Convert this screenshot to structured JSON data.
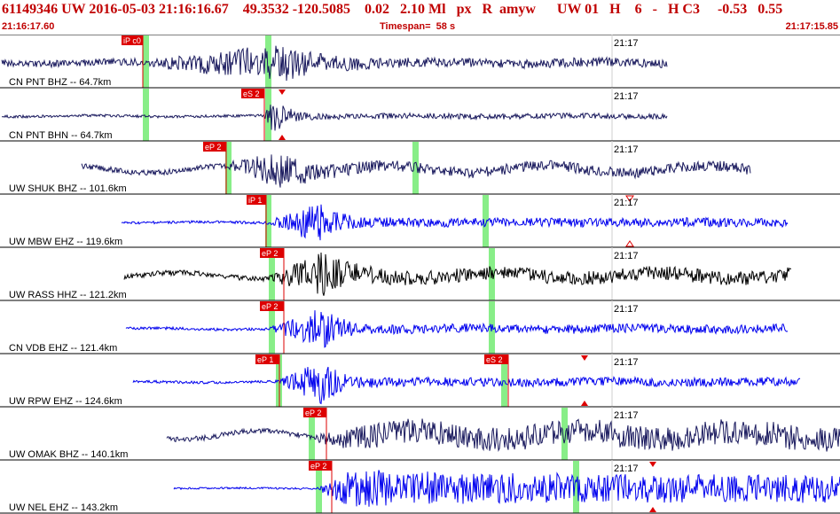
{
  "header": {
    "title": "61149346 UW 2016-05-03 21:16:16.67    49.3532 -120.5085    0.02   2.10 Ml   px   R  amyw      UW 01   H    6   -   H C3     -0.53   0.55",
    "start_time": "21:16:17.60",
    "timespan": "Timespan=  58 s",
    "end_time": "21:17:15.85"
  },
  "colors": {
    "trace_dark": "#1a1a5e",
    "trace_blue": "#0000ee",
    "trace_black": "#000000",
    "pick_box": "#dd0000",
    "pick_line": "#dd0000",
    "window_band": "#88ee88"
  },
  "channels": [
    {
      "label": "CN PNT BHZ -- 64.7km",
      "minute_tick": "21:17",
      "color": "trace_dark",
      "picks": [
        {
          "label": "iP c0"
        }
      ],
      "markers": []
    },
    {
      "label": "CN PNT BHN -- 64.7km",
      "minute_tick": "21:17",
      "color": "trace_dark",
      "picks": [
        {
          "label": "eS 2"
        }
      ],
      "markers": [
        "red-triangle"
      ]
    },
    {
      "label": "UW SHUK BHZ -- 101.6km",
      "minute_tick": "21:17",
      "color": "trace_dark",
      "picks": [
        {
          "label": "eP 2"
        }
      ],
      "markers": []
    },
    {
      "label": "UW MBW EHZ -- 119.6km",
      "minute_tick": "21:17",
      "color": "trace_blue",
      "picks": [
        {
          "label": "iP 1"
        }
      ],
      "markers": [
        "hollow-triangle"
      ]
    },
    {
      "label": "UW RASS HHZ -- 121.2km",
      "minute_tick": "21:17",
      "color": "trace_black",
      "picks": [
        {
          "label": "eP 2"
        }
      ],
      "markers": []
    },
    {
      "label": "CN VDB EHZ -- 121.4km",
      "minute_tick": "21:17",
      "color": "trace_blue",
      "picks": [
        {
          "label": "eP 2"
        }
      ],
      "markers": []
    },
    {
      "label": "UW RPW EHZ -- 124.6km",
      "minute_tick": "21:17",
      "color": "trace_blue",
      "picks": [
        {
          "label": "eP 1"
        },
        {
          "label": "eS 2"
        }
      ],
      "markers": [
        "red-triangle"
      ]
    },
    {
      "label": "UW OMAK BHZ -- 140.1km",
      "minute_tick": "21:17",
      "color": "trace_dark",
      "picks": [
        {
          "label": "eP 2"
        }
      ],
      "markers": []
    },
    {
      "label": "UW NEL EHZ -- 143.2km",
      "minute_tick": "21:17",
      "color": "trace_blue",
      "picks": [
        {
          "label": "eP 2"
        }
      ],
      "markers": [
        "red-triangle"
      ]
    }
  ]
}
